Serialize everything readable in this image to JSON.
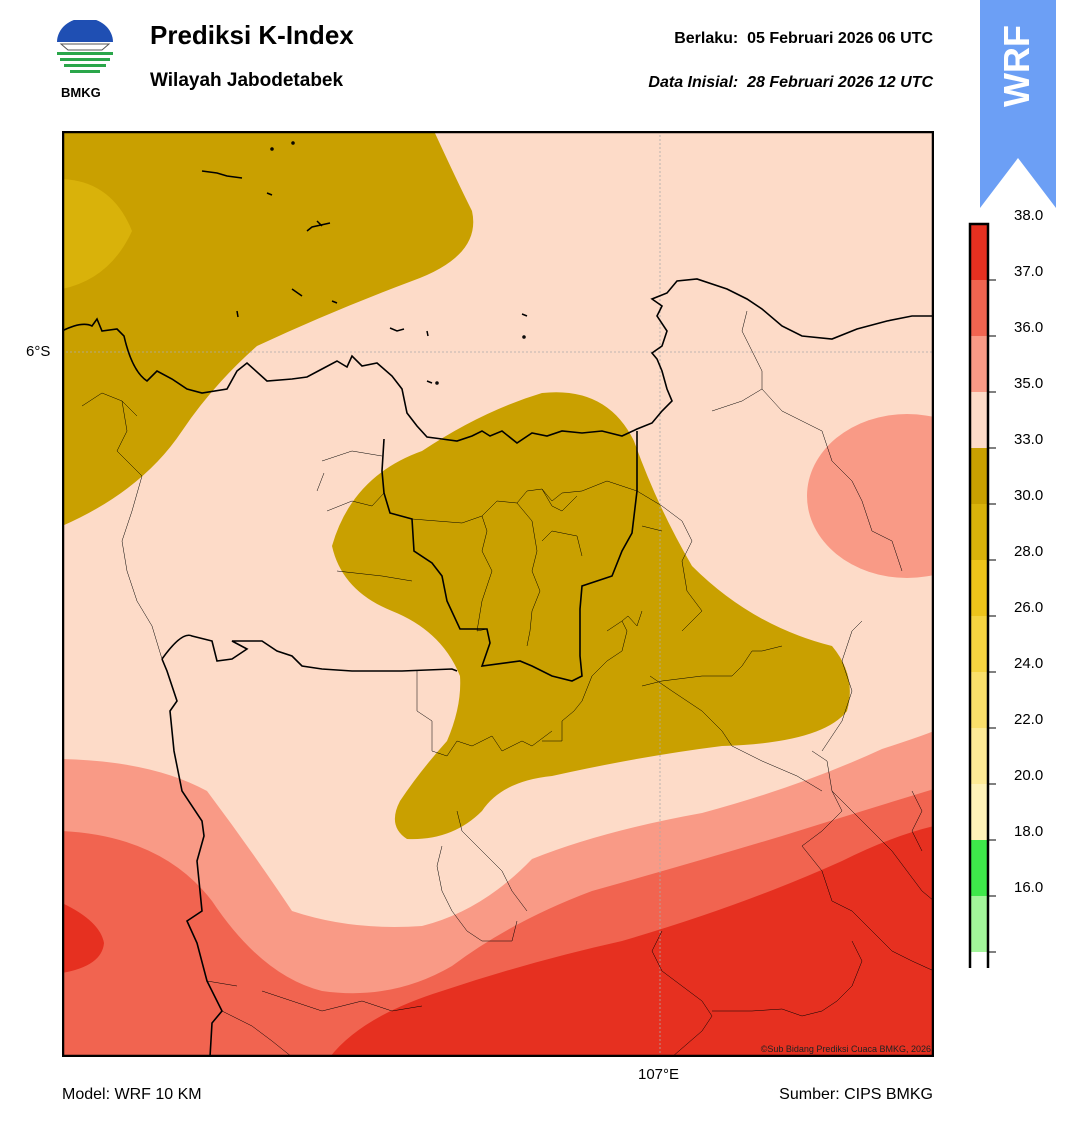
{
  "header": {
    "title": "Prediksi K-Index",
    "subtitle": "Wilayah Jabodetabek",
    "valid_label": "Berlaku:",
    "valid_value": "05 Februari 2026 06 UTC",
    "init_label": "Data Inisial:",
    "init_value": "28 Februari 2026 12 UTC",
    "logo_text": "BMKG",
    "badge_text": "WRF"
  },
  "map": {
    "lat_tick": "6°S",
    "lon_tick": "107°E",
    "credit": "©Sub Bidang Prediksi Cuaca BMKG, 2026"
  },
  "colorbar": {
    "labels": [
      "38.0",
      "37.0",
      "36.0",
      "35.0",
      "33.0",
      "30.0",
      "28.0",
      "26.0",
      "24.0",
      "22.0",
      "20.0",
      "18.0",
      "16.0"
    ],
    "colors": [
      "#e63020",
      "#f16450",
      "#f99a86",
      "#fddbc8",
      "#c9a000",
      "#d9b20a",
      "#edc41a",
      "#f5d440",
      "#fae06a",
      "#fdeb96",
      "#fef3b8",
      "#3ee84a",
      "#a2f59a",
      "#ffffff"
    ]
  },
  "footer": {
    "model": "Model: WRF 10 KM",
    "source": "Sumber: CIPS BMKG"
  }
}
